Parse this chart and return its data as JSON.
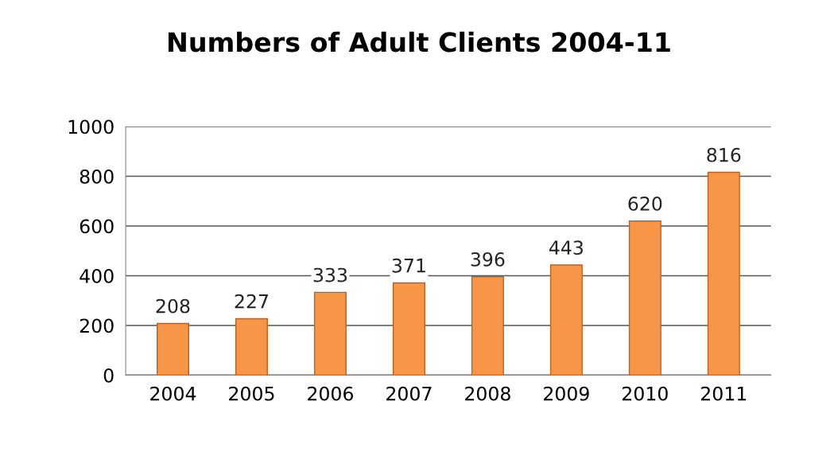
{
  "chart_data": {
    "type": "bar",
    "title": "Numbers of Adult Clients 2004-11",
    "categories": [
      "2004",
      "2005",
      "2006",
      "2007",
      "2008",
      "2009",
      "2010",
      "2011"
    ],
    "values": [
      208,
      227,
      333,
      371,
      396,
      443,
      620,
      816
    ],
    "color": "#f79646",
    "ylim": [
      0,
      1000
    ],
    "yticks": [
      0,
      200,
      400,
      600,
      800,
      1000
    ],
    "grid": "y",
    "data_labels": true
  }
}
